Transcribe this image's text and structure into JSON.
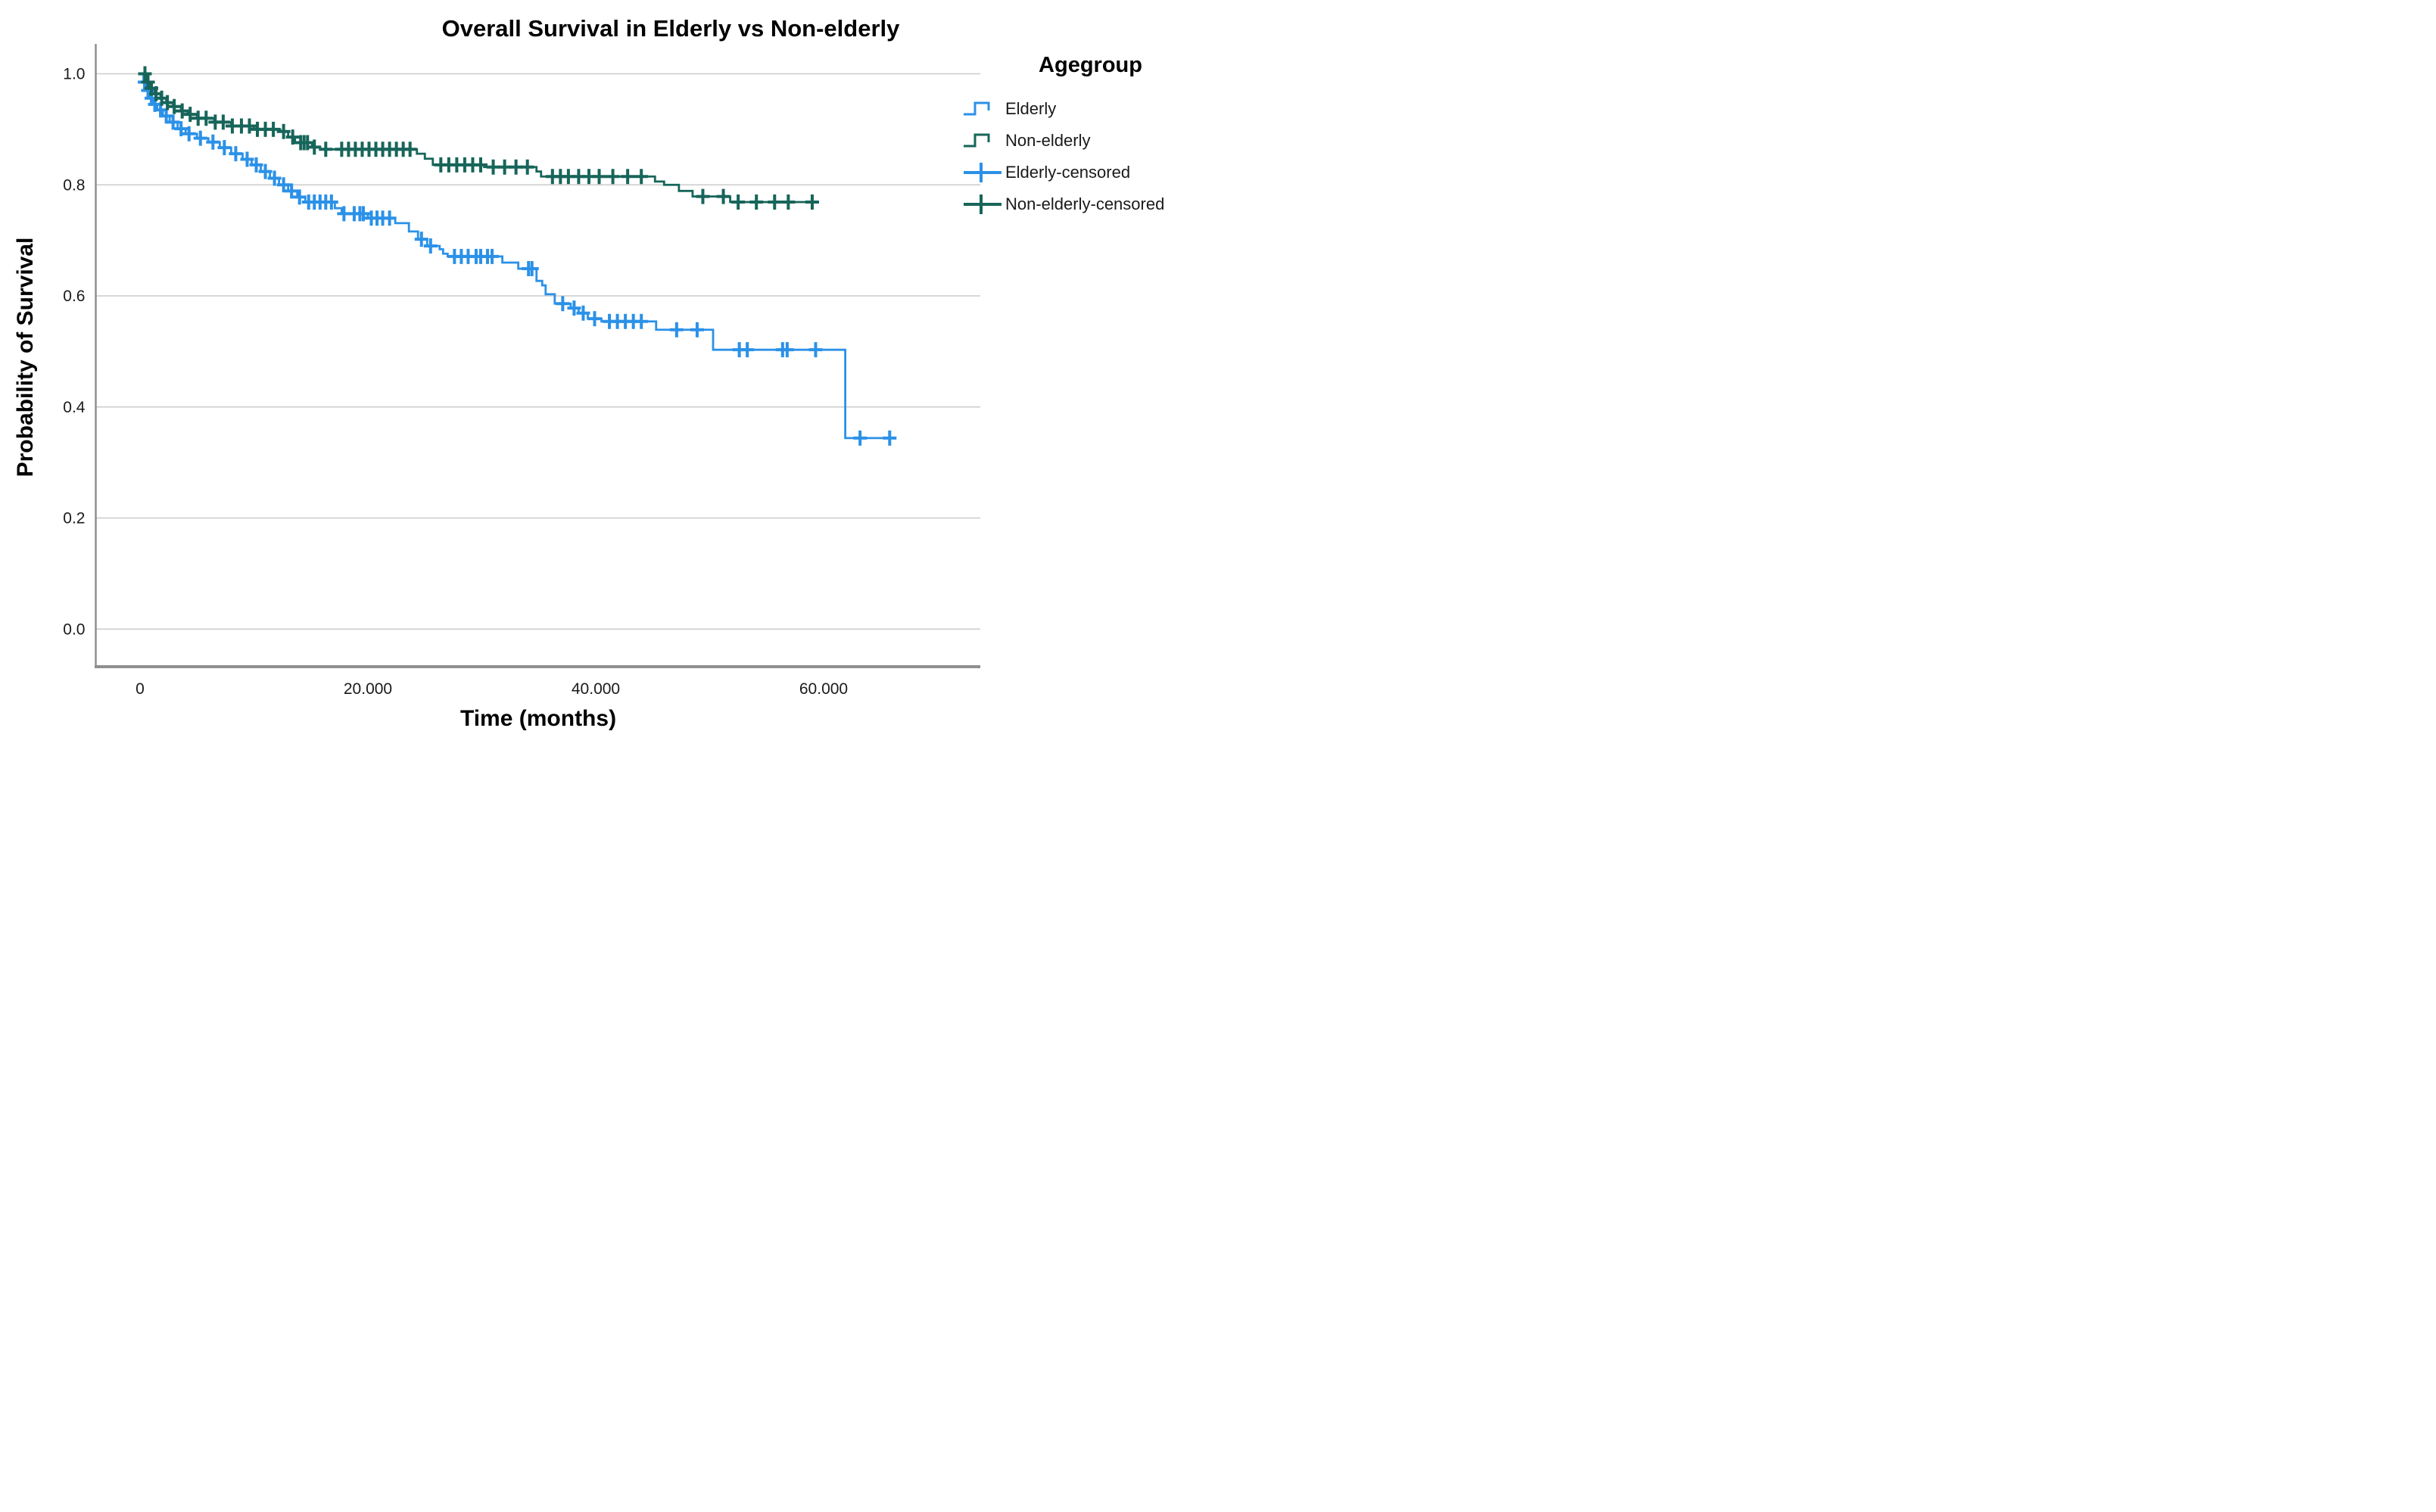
{
  "chart": {
    "title": "Overall Survival in Elderly vs Non-elderly",
    "xlabel": "Time (months)",
    "ylabel": "Probability of Survival",
    "x_ticks": [
      {
        "value": 0,
        "label": "0"
      },
      {
        "value": 20,
        "label": "20.000"
      },
      {
        "value": 40,
        "label": "40.000"
      },
      {
        "value": 60,
        "label": "60.000"
      }
    ],
    "y_ticks": [
      {
        "value": 0.0,
        "label": "0.0"
      },
      {
        "value": 0.2,
        "label": "0.2"
      },
      {
        "value": 0.4,
        "label": "0.4"
      },
      {
        "value": 0.6,
        "label": "0.6"
      },
      {
        "value": 0.8,
        "label": "0.8"
      },
      {
        "value": 1.0,
        "label": "1.0"
      }
    ]
  },
  "legend": {
    "title": "Agegroup",
    "items": [
      {
        "label": "Elderly",
        "symbol": "step",
        "series": "Elderly"
      },
      {
        "label": "Non-elderly",
        "symbol": "step",
        "series": "Non-elderly"
      },
      {
        "label": "Elderly-censored",
        "symbol": "censor",
        "series": "Elderly"
      },
      {
        "label": "Non-elderly-censored",
        "symbol": "censor",
        "series": "Non-elderly"
      }
    ]
  },
  "colors": {
    "elderly": "#2B91E8",
    "non_elderly": "#17655A",
    "gridline": "#CBCBCB",
    "axis": "#8F8F8F",
    "text": "#000000"
  },
  "chart_data": {
    "type": "line",
    "subtype": "kaplan-meier-step",
    "title": "Overall Survival in Elderly vs Non-elderly",
    "xlabel": "Time (months)",
    "ylabel": "Probability of Survival",
    "xlim": [
      0,
      72
    ],
    "ylim": [
      0.0,
      1.0
    ],
    "grid": "horizontal",
    "legend_position": "right",
    "series": [
      {
        "name": "Elderly",
        "color_key": "elderly",
        "end_time": 66.3,
        "steps": [
          [
            0.15,
            1.0
          ],
          [
            0.3,
            0.985
          ],
          [
            0.5,
            0.97
          ],
          [
            0.8,
            0.956
          ],
          [
            1.1,
            0.945
          ],
          [
            1.5,
            0.935
          ],
          [
            2.0,
            0.924
          ],
          [
            2.6,
            0.913
          ],
          [
            3.3,
            0.901
          ],
          [
            4.0,
            0.892
          ],
          [
            5.0,
            0.884
          ],
          [
            6.0,
            0.877
          ],
          [
            7.0,
            0.867
          ],
          [
            8.0,
            0.856
          ],
          [
            9.0,
            0.846
          ],
          [
            9.8,
            0.836
          ],
          [
            10.6,
            0.824
          ],
          [
            11.4,
            0.812
          ],
          [
            12.2,
            0.8
          ],
          [
            13.0,
            0.789
          ],
          [
            13.8,
            0.778
          ],
          [
            14.5,
            0.769
          ],
          [
            17.1,
            0.758
          ],
          [
            17.7,
            0.748
          ],
          [
            20.0,
            0.74
          ],
          [
            22.4,
            0.731
          ],
          [
            23.6,
            0.716
          ],
          [
            24.4,
            0.702
          ],
          [
            25.2,
            0.69
          ],
          [
            26.3,
            0.684
          ],
          [
            26.6,
            0.676
          ],
          [
            27.0,
            0.671
          ],
          [
            31.8,
            0.66
          ],
          [
            33.2,
            0.649
          ],
          [
            34.8,
            0.627
          ],
          [
            35.3,
            0.619
          ],
          [
            35.6,
            0.603
          ],
          [
            36.4,
            0.586
          ],
          [
            37.8,
            0.578
          ],
          [
            38.5,
            0.569
          ],
          [
            39.3,
            0.559
          ],
          [
            40.5,
            0.554
          ],
          [
            45.3,
            0.539
          ],
          [
            50.3,
            0.503
          ],
          [
            61.9,
            0.344
          ]
        ],
        "censored_times": [
          0.4,
          0.7,
          1.0,
          1.3,
          1.8,
          2.3,
          2.9,
          3.6,
          4.3,
          5.3,
          6.4,
          7.4,
          8.4,
          9.4,
          10.2,
          11.0,
          11.8,
          12.6,
          13.3,
          14.0,
          14.8,
          15.3,
          15.8,
          16.3,
          16.8,
          17.9,
          18.8,
          19.3,
          19.6,
          20.3,
          20.8,
          21.3,
          21.9,
          24.7,
          25.5,
          27.6,
          28.2,
          28.8,
          29.5,
          29.9,
          30.5,
          30.9,
          34.1,
          34.4,
          37.1,
          38.1,
          38.9,
          39.9,
          41.2,
          41.9,
          42.6,
          43.3,
          44.0,
          47.1,
          48.9,
          52.6,
          53.3,
          56.4,
          56.8,
          59.3,
          63.2,
          65.8
        ]
      },
      {
        "name": "Non-elderly",
        "color_key": "non_elderly",
        "end_time": 59.6,
        "steps": [
          [
            0.43,
            1.0
          ],
          [
            0.6,
            0.985
          ],
          [
            0.9,
            0.974
          ],
          [
            1.3,
            0.964
          ],
          [
            1.8,
            0.956
          ],
          [
            2.3,
            0.948
          ],
          [
            2.9,
            0.941
          ],
          [
            3.6,
            0.933
          ],
          [
            4.2,
            0.927
          ],
          [
            5.0,
            0.92
          ],
          [
            6.5,
            0.913
          ],
          [
            8.0,
            0.906
          ],
          [
            10.0,
            0.9
          ],
          [
            12.3,
            0.896
          ],
          [
            13.0,
            0.886
          ],
          [
            13.6,
            0.876
          ],
          [
            15.1,
            0.868
          ],
          [
            15.8,
            0.864
          ],
          [
            24.3,
            0.856
          ],
          [
            25.0,
            0.847
          ],
          [
            25.7,
            0.836
          ],
          [
            30.2,
            0.832
          ],
          [
            34.8,
            0.824
          ],
          [
            35.2,
            0.815
          ],
          [
            45.2,
            0.806
          ],
          [
            46.0,
            0.8
          ],
          [
            47.3,
            0.789
          ],
          [
            48.5,
            0.779
          ],
          [
            51.8,
            0.769
          ]
        ],
        "censored_times": [
          0.43,
          0.7,
          1.0,
          1.4,
          1.9,
          2.4,
          3.0,
          3.7,
          4.4,
          5.1,
          5.8,
          6.6,
          7.3,
          8.1,
          8.9,
          9.6,
          10.3,
          11.0,
          11.7,
          12.6,
          13.4,
          14.1,
          14.4,
          14.7,
          15.3,
          16.3,
          17.7,
          18.3,
          18.9,
          19.5,
          20.1,
          20.7,
          21.3,
          21.9,
          22.5,
          23.1,
          23.7,
          26.4,
          27.1,
          27.8,
          28.5,
          29.2,
          29.9,
          31.0,
          32.0,
          33.0,
          34.0,
          36.2,
          36.9,
          37.6,
          38.5,
          39.4,
          40.3,
          41.5,
          42.8,
          44.0,
          49.4,
          51.2,
          52.5,
          54.1,
          55.7,
          56.9,
          59.0
        ]
      }
    ]
  }
}
